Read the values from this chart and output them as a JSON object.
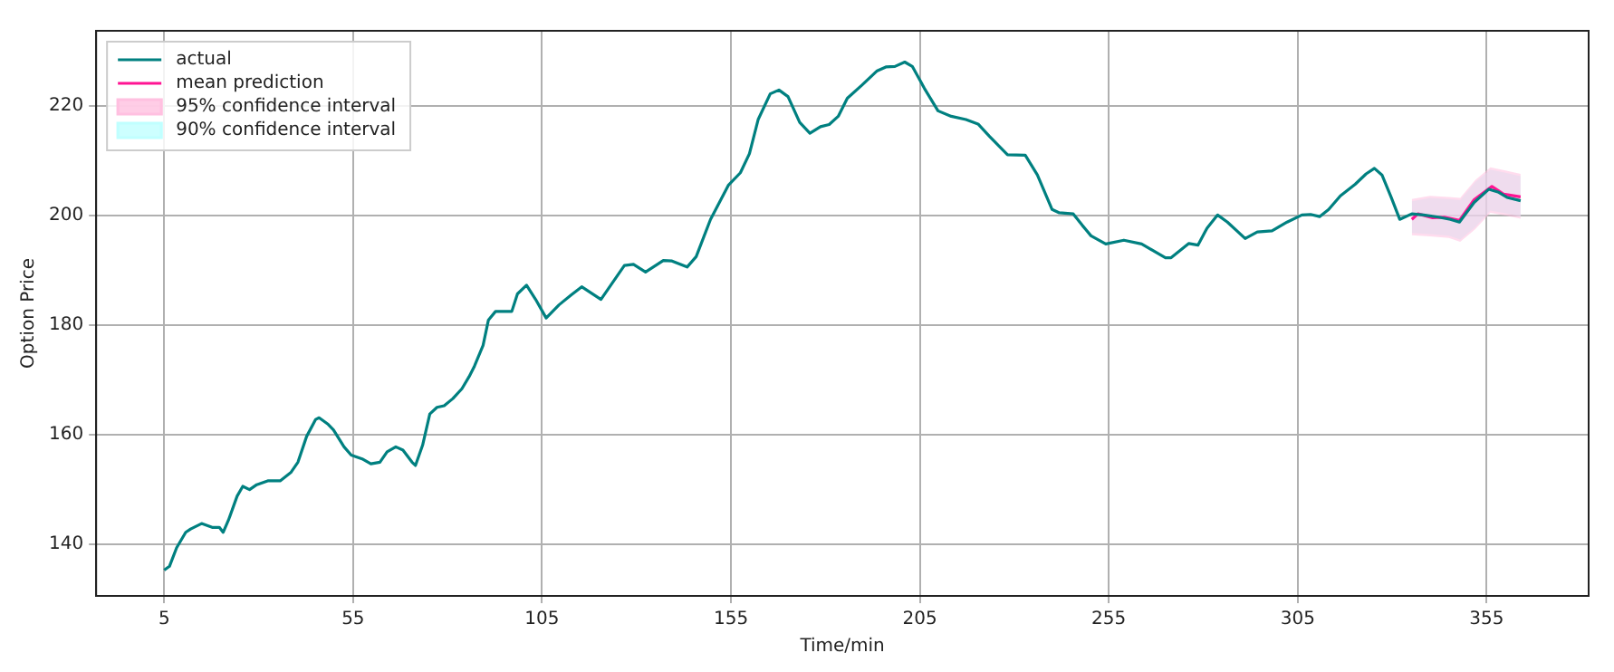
{
  "chart_data": {
    "type": "line",
    "xlabel": "Time/min",
    "ylabel": "Option Price",
    "xlim": [
      -13,
      382
    ],
    "ylim": [
      130.6,
      233.7
    ],
    "xticks": [
      5,
      55,
      105,
      155,
      205,
      255,
      305,
      355
    ],
    "yticks": [
      140,
      160,
      180,
      200,
      220
    ],
    "grid": true,
    "legend": "top left",
    "line_style": "solid",
    "marker": "none",
    "series": [
      {
        "name": "actual",
        "color": "#008080",
        "x": [
          5,
          6.4,
          8.3,
          10.7,
          12,
          14.9,
          17.7,
          19.6,
          20.6,
          22,
          24.3,
          25.8,
          27.6,
          29.5,
          32.4,
          35.7,
          38.5,
          40.4,
          42.7,
          45.1,
          46,
          48.4,
          49.8,
          52.6,
          54.5,
          57.4,
          59.7,
          62.1,
          64,
          66.3,
          68.2,
          70.6,
          71.5,
          73.4,
          75.3,
          77.2,
          79.1,
          81.4,
          83.8,
          85.7,
          87.1,
          89.4,
          90.8,
          92.7,
          97,
          98.5,
          100.9,
          103.3,
          106.1,
          109.5,
          112.7,
          115.5,
          120.6,
          126.8,
          129.2,
          132.4,
          137.1,
          139.4,
          143.4,
          145.8,
          149.6,
          154.3,
          157.5,
          159.9,
          162.2,
          165.4,
          167.7,
          170.1,
          173.2,
          175.9,
          178.7,
          181,
          183.4,
          185.8,
          189.7,
          193.7,
          196,
          198.4,
          201,
          203,
          206.2,
          209.8,
          213.3,
          217.2,
          220.4,
          223.5,
          228.2,
          232.9,
          236.1,
          240,
          241.9,
          245.6,
          248,
          250.3,
          254.2,
          259,
          263.7,
          270,
          271.5,
          276.2,
          278.6,
          281,
          283.8,
          286.4,
          291.1,
          294.3,
          298.2,
          302.2,
          306.1,
          308.4,
          310.8,
          313.2,
          316.3,
          320.2,
          323.1,
          325.3,
          327.3,
          329.7,
          332,
          335.2,
          338.3,
          342.3,
          345.4,
          347.8,
          351.7,
          355.6,
          358,
          360.4,
          364
        ],
        "values": [
          135.3,
          136,
          139.4,
          142.2,
          142.8,
          143.8,
          143.1,
          143.1,
          142.2,
          144.4,
          148.8,
          150.6,
          150,
          150.9,
          151.6,
          151.6,
          153.1,
          155,
          159.7,
          162.8,
          163.1,
          161.9,
          160.9,
          157.8,
          156.3,
          155.6,
          154.7,
          155,
          156.9,
          157.8,
          157.2,
          155,
          154.4,
          158.1,
          163.8,
          165,
          165.3,
          166.6,
          168.4,
          170.6,
          172.5,
          176.3,
          180.9,
          182.5,
          182.5,
          185.7,
          187.3,
          184.7,
          181.3,
          183.7,
          185.5,
          187,
          184.7,
          190.9,
          191.1,
          189.7,
          191.8,
          191.7,
          190.6,
          192.5,
          199.3,
          205.5,
          207.8,
          211.3,
          217.5,
          222.2,
          222.9,
          221.7,
          217,
          215,
          216.2,
          216.6,
          218.1,
          221.4,
          223.8,
          226.4,
          227.1,
          227.2,
          228,
          227.2,
          223.2,
          219.1,
          218.1,
          217.5,
          216.7,
          214.4,
          211.1,
          211,
          207.4,
          201.1,
          200.5,
          200.3,
          198.2,
          196.3,
          194.8,
          195.5,
          194.8,
          192.3,
          192.3,
          194.9,
          194.6,
          197.7,
          200.1,
          198.8,
          195.8,
          197,
          197.2,
          198.8,
          200.1,
          200.2,
          199.8,
          201.1,
          203.6,
          205.7,
          207.6,
          208.6,
          207.4,
          203.4,
          199.3,
          200.3,
          200.1,
          199.7,
          199.3,
          198.8,
          202.4,
          204.8,
          204.3,
          203.3,
          202.7
        ]
      },
      {
        "name": "mean prediction",
        "color": "#ff1493",
        "x": [
          335.2,
          336.8,
          340.7,
          343.8,
          347.8,
          351.7,
          356.4,
          359.5,
          364
        ],
        "values": [
          199.3,
          200.3,
          199.6,
          199.7,
          199.1,
          202.9,
          205.3,
          203.9,
          203.4
        ]
      },
      {
        "name": "95% confidence interval",
        "color": "#ffc0e0",
        "x": [
          335.2,
          340,
          345,
          348,
          352,
          356,
          360,
          364
        ],
        "values": [
          null,
          null,
          null,
          null,
          null,
          null,
          null,
          null
        ],
        "lower": [
          196.4,
          196.2,
          195.9,
          195.2,
          197.5,
          200.5,
          200,
          199.4
        ],
        "upper": [
          203,
          203.6,
          203.4,
          203.2,
          206.5,
          208.8,
          208.2,
          207.6
        ]
      },
      {
        "name": "90% confidence interval",
        "color": "#c0ffff",
        "x": [
          335.2,
          340,
          345,
          348,
          352,
          356,
          360,
          364
        ],
        "values": [
          null,
          null,
          null,
          null,
          null,
          null,
          null,
          null
        ],
        "lower": [
          196.8,
          196.6,
          196.3,
          195.6,
          197.9,
          200.9,
          200.4,
          199.8
        ],
        "upper": [
          202.6,
          203.2,
          203,
          202.8,
          206.1,
          208.4,
          207.8,
          207.2
        ]
      }
    ]
  }
}
